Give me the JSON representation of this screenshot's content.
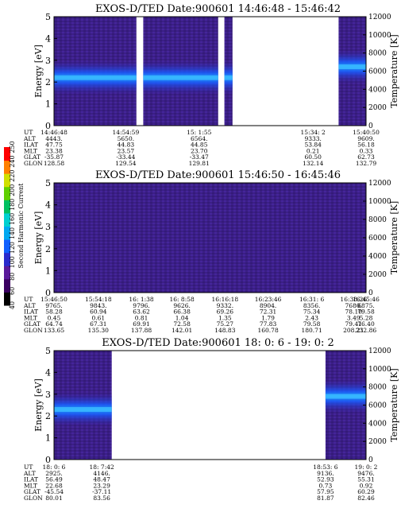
{
  "colorbar": {
    "label": "Second Harmonic Current",
    "ticks": [
      "40",
      "60",
      "80",
      "100",
      "120",
      "140",
      "160",
      "180",
      "200",
      "220",
      "240",
      "250"
    ],
    "colors": [
      "#000000",
      "#3a0060",
      "#5a1a9a",
      "#2a2acc",
      "#1060ff",
      "#00a8f0",
      "#00d0d0",
      "#00c060",
      "#60d000",
      "#d0e000",
      "#ff8000",
      "#ff0000"
    ]
  },
  "chart_data": [
    {
      "type": "heatmap",
      "title": "EXOS-D/TED  Date:900601  14:46:48 - 15:46:42",
      "ylabel": "Energy [eV]",
      "y2label": "Temperature [K]",
      "ylim": [
        0,
        5
      ],
      "y2lim": [
        0,
        12000
      ],
      "yticks": [
        "0",
        "1",
        "2",
        "3",
        "4",
        "5"
      ],
      "y2ticks": [
        "0",
        "2000",
        "4000",
        "6000",
        "8000",
        "10000",
        "12000"
      ],
      "segments": [
        {
          "x0": 0.0,
          "x1": 0.264,
          "band_center_eV": 2.2
        },
        {
          "x0": 0.286,
          "x1": 0.526,
          "band_center_eV": 2.2
        },
        {
          "x0": 0.546,
          "x1": 0.572,
          "band_center_eV": 2.2
        },
        {
          "x0": 0.912,
          "x1": 1.0,
          "band_center_eV": 2.7
        }
      ],
      "table": {
        "rows": [
          "UT",
          "ALT",
          "ILAT",
          "MLT",
          "GLAT",
          "GLON"
        ],
        "cols": [
          {
            "x": 0.0,
            "values": [
              "14:46:48",
              "4443.",
              "47.75",
              "23.38",
              "-35.87",
              "128.58"
            ]
          },
          {
            "x": 0.23,
            "values": [
              "14:54:59",
              "5650.",
              "44.83",
              "23.57",
              "-33.44",
              "129.54"
            ]
          },
          {
            "x": 0.465,
            "values": [
              "15: 1:55",
              "6564.",
              "44.85",
              "23.70",
              "-33.47",
              "129.81"
            ]
          },
          {
            "x": 0.83,
            "values": [
              "15:34: 2",
              "9333.",
              "53.84",
              "0.21",
              "60.50",
              "132.14"
            ]
          },
          {
            "x": 1.0,
            "values": [
              "15:40:50",
              "9609.",
              "56.18",
              "0.33",
              "62.73",
              "132.79"
            ]
          }
        ]
      }
    },
    {
      "type": "heatmap",
      "title": "EXOS-D/TED  Date:900601  15:46:50 - 16:45:46",
      "ylabel": "Energy [eV]",
      "y2label": "Temperature [K]",
      "ylim": [
        0,
        5
      ],
      "y2lim": [
        0,
        12000
      ],
      "yticks": [
        "0",
        "1",
        "2",
        "3",
        "4",
        "5"
      ],
      "y2ticks": [
        "0",
        "2000",
        "4000",
        "6000",
        "8000",
        "10000",
        "12000"
      ],
      "segments": [
        {
          "x0": 0.0,
          "x1": 1.0,
          "band_center_eV": null
        }
      ],
      "table": {
        "rows": [
          "UT",
          "ALT",
          "ILAT",
          "MLT",
          "GLAT",
          "GLON"
        ],
        "cols": [
          {
            "x": 0.0,
            "values": [
              "15:46:50",
              "9765.",
              "58.28",
              "0.45",
              "64.74",
              "133.65"
            ]
          },
          {
            "x": 0.142,
            "values": [
              "15:54:18",
              "9843.",
              "60.94",
              "0.61",
              "67.31",
              "135.30"
            ]
          },
          {
            "x": 0.28,
            "values": [
              "16: 1:38",
              "9796.",
              "63.62",
              "0.81",
              "69.91",
              "137.88"
            ]
          },
          {
            "x": 0.41,
            "values": [
              "16: 8:58",
              "9626.",
              "66.38",
              "1.04",
              "72.58",
              "142.01"
            ]
          },
          {
            "x": 0.548,
            "values": [
              "16:16:18",
              "9332.",
              "69.26",
              "1.35",
              "75.27",
              "148.83"
            ]
          },
          {
            "x": 0.686,
            "values": [
              "16:23:46",
              "8904.",
              "72.31",
              "1.79",
              "77.83",
              "160.78"
            ]
          },
          {
            "x": 0.826,
            "values": [
              "16:31: 6",
              "8356.",
              "75.34",
              "2.43",
              "79.58",
              "180.71"
            ]
          },
          {
            "x": 0.96,
            "values": [
              "16:38:26",
              "7680.",
              "78.10",
              "3.49",
              "79.41",
              "208.21"
            ]
          },
          {
            "x": 1.0,
            "values": [
              "16:45:46",
              "6875.",
              "79.58",
              "5.28",
              "76.40",
              "232.86"
            ]
          }
        ]
      }
    },
    {
      "type": "heatmap",
      "title": "EXOS-D/TED  Date:900601  18: 0: 6 - 19: 0: 2",
      "ylabel": "Energy [eV]",
      "y2label": "Temperature [K]",
      "ylim": [
        0,
        5
      ],
      "y2lim": [
        0,
        12000
      ],
      "yticks": [
        "0",
        "1",
        "2",
        "3",
        "4",
        "5"
      ],
      "y2ticks": [
        "0",
        "2000",
        "4000",
        "6000",
        "8000",
        "10000",
        "12000"
      ],
      "segments": [
        {
          "x0": 0.0,
          "x1": 0.185,
          "band_center_eV": 2.3
        },
        {
          "x0": 0.87,
          "x1": 1.0,
          "band_center_eV": 2.9
        }
      ],
      "table": {
        "rows": [
          "UT",
          "ALT",
          "ILAT",
          "MLT",
          "GLAT",
          "GLON"
        ],
        "cols": [
          {
            "x": 0.0,
            "values": [
              "18: 0: 6",
              "2925.",
              "56.49",
              "22.68",
              "-45.54",
              "80.01"
            ]
          },
          {
            "x": 0.153,
            "values": [
              "18: 7:42",
              "4146.",
              "48.47",
              "23.29",
              "-37.11",
              "83.56"
            ]
          },
          {
            "x": 0.87,
            "values": [
              "18:53: 6",
              "9136.",
              "52.93",
              "0.73",
              "57.95",
              "81.87"
            ]
          },
          {
            "x": 1.0,
            "values": [
              "19: 0: 2",
              "9476.",
              "55.31",
              "0.92",
              "60.29",
              "82.46"
            ]
          }
        ]
      }
    }
  ]
}
